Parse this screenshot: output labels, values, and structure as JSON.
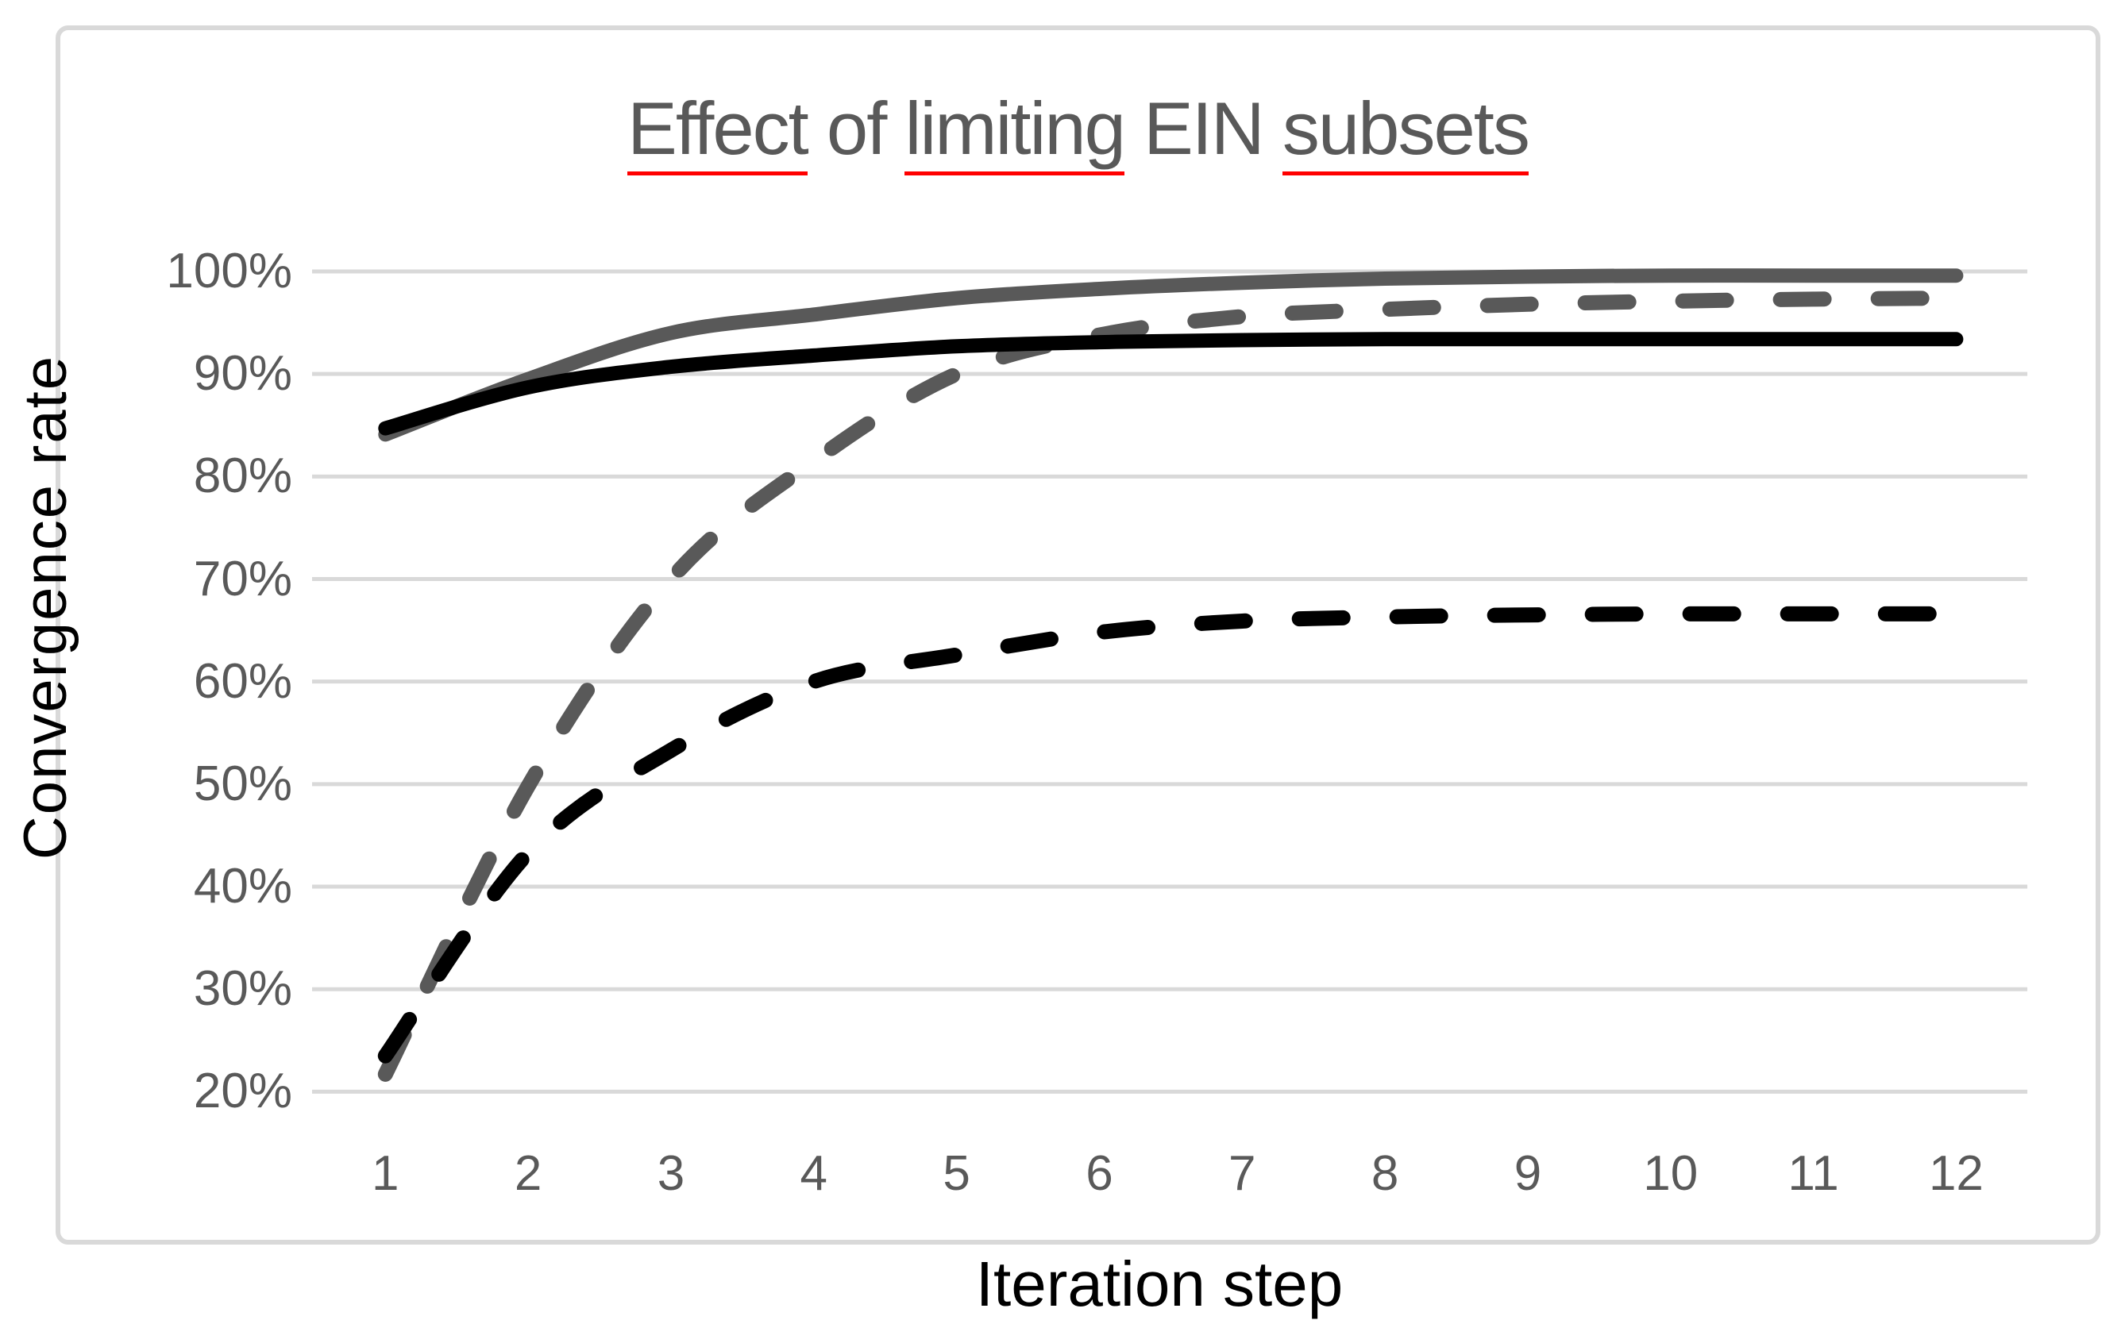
{
  "chart": {
    "title": {
      "full_text": "Effect of limiting EIN subsets",
      "color": "#595959",
      "spellcheck_underline_color": "#ff0000",
      "segments": [
        {
          "text": "Effect",
          "underline": true
        },
        {
          "text": " of ",
          "underline": false
        },
        {
          "text": "limiting",
          "underline": true
        },
        {
          "text": " EIN ",
          "underline": false
        },
        {
          "text": "subsets",
          "underline": true
        }
      ]
    },
    "y_axis": {
      "title": "Convergence rate",
      "tick_labels": [
        "100%",
        "90%",
        "80%",
        "70%",
        "60%",
        "50%",
        "40%",
        "30%",
        "20%"
      ],
      "tick_values": [
        100,
        90,
        80,
        70,
        60,
        50,
        40,
        30,
        20
      ]
    },
    "x_axis": {
      "title": "Iteration step",
      "tick_labels": [
        "1",
        "2",
        "3",
        "4",
        "5",
        "6",
        "7",
        "8",
        "9",
        "10",
        "11",
        "12"
      ]
    }
  },
  "colors": {
    "background": "#ffffff",
    "frame_border": "#d9d9d9",
    "gridline": "#d9d9d9",
    "tick_label": "#595959",
    "axis_title": "#000000",
    "series_gray": "#595959",
    "series_black": "#000000"
  },
  "chart_data": {
    "type": "line",
    "title": "Effect of limiting EIN subsets",
    "xlabel": "Iteration step",
    "ylabel": "Convergence rate",
    "x": [
      1,
      2,
      3,
      4,
      5,
      6,
      7,
      8,
      9,
      10,
      11,
      12
    ],
    "ylim": [
      20,
      100
    ],
    "ytick_step": 10,
    "grid": true,
    "legend_position": "none",
    "smoothed_lines": true,
    "value_unit": "percent",
    "series": [
      {
        "name": "solid-gray",
        "style": "solid",
        "color": "#595959",
        "values": [
          84.1,
          89.5,
          94.0,
          95.8,
          97.4,
          98.3,
          98.9,
          99.3,
          99.5,
          99.6,
          99.6,
          99.6
        ]
      },
      {
        "name": "dashed-gray",
        "style": "dashed",
        "color": "#595959",
        "values": [
          21.7,
          49.8,
          70.0,
          81.5,
          90.0,
          93.8,
          95.6,
          96.3,
          96.8,
          97.1,
          97.3,
          97.4
        ]
      },
      {
        "name": "solid-black",
        "style": "solid",
        "color": "#000000",
        "values": [
          84.7,
          88.7,
          90.7,
          91.8,
          92.7,
          93.1,
          93.3,
          93.4,
          93.4,
          93.4,
          93.4,
          93.4
        ]
      },
      {
        "name": "dashed-black",
        "style": "dashed",
        "color": "#000000",
        "values": [
          23.5,
          43.3,
          53.3,
          60.0,
          62.6,
          64.8,
          65.9,
          66.3,
          66.5,
          66.6,
          66.6,
          66.6
        ]
      }
    ]
  }
}
